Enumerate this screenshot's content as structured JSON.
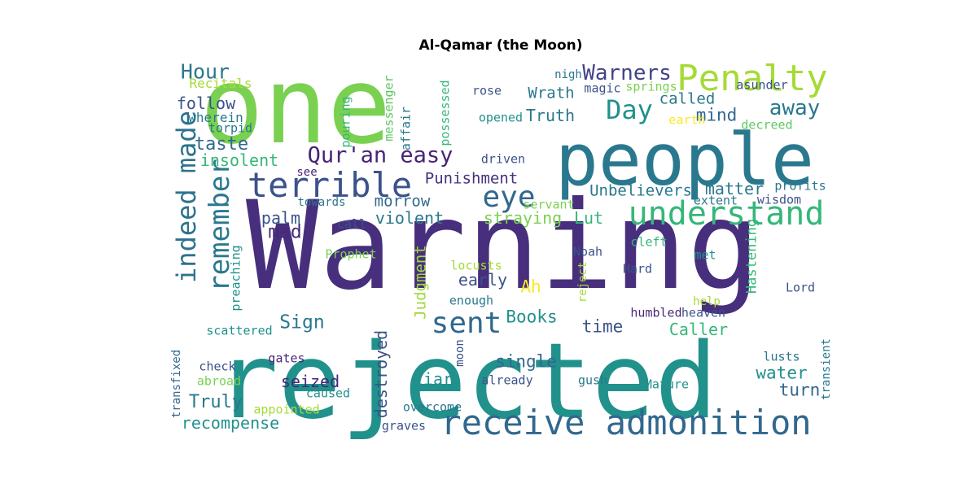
{
  "title": "Al-Qamar (the Moon)",
  "words": [
    {
      "text": "Warning",
      "color": "#472f7d",
      "size": "big"
    },
    {
      "text": "rejected",
      "color": "#21918c"
    },
    {
      "text": "one",
      "color": "#7ad151"
    },
    {
      "text": "people",
      "color": "#2a788e"
    },
    {
      "text": "receive admonition",
      "color": "#31688e"
    },
    {
      "text": "understand",
      "color": "#35b779"
    },
    {
      "text": "Penalty",
      "color": "#a5db36"
    },
    {
      "text": "terrible",
      "color": "#3b528b"
    },
    {
      "text": "indeed made",
      "color": "#2c728e",
      "orientation": "vertical"
    },
    {
      "text": "eye",
      "color": "#31688e"
    },
    {
      "text": "remember",
      "color": "#2a788e",
      "orientation": "vertical"
    },
    {
      "text": "Qur'an easy",
      "color": "#482475"
    },
    {
      "text": "sent",
      "color": "#31688e"
    },
    {
      "text": "Day",
      "color": "#21918c"
    },
    {
      "text": "Warners",
      "color": "#414487"
    },
    {
      "text": "away",
      "color": "#2a788e"
    },
    {
      "text": "Hour",
      "color": "#2a788e"
    },
    {
      "text": "taste",
      "color": "#31688e"
    },
    {
      "text": "follow",
      "color": "#3b528b"
    },
    {
      "text": "mind",
      "color": "#31688e"
    },
    {
      "text": "called",
      "color": "#2a788e"
    },
    {
      "text": "Truth",
      "color": "#2a788e"
    },
    {
      "text": "Wrath",
      "color": "#2a788e"
    },
    {
      "text": "insolent",
      "color": "#35b779"
    },
    {
      "text": "Punishment",
      "color": "#46327e"
    },
    {
      "text": "matter",
      "color": "#2a788e"
    },
    {
      "text": "Unbelievers",
      "color": "#2a788e"
    },
    {
      "text": "morrow",
      "color": "#31688e"
    },
    {
      "text": "violent",
      "color": "#2a788e"
    },
    {
      "text": "palm",
      "color": "#3b528b"
    },
    {
      "text": "mad",
      "color": "#482878"
    },
    {
      "text": "straying",
      "color": "#7ad151"
    },
    {
      "text": "Lut",
      "color": "#35b779"
    },
    {
      "text": "Judgment",
      "color": "#a0da39",
      "orientation": "vertical"
    },
    {
      "text": "Sign",
      "color": "#2a788e"
    },
    {
      "text": "early",
      "color": "#3b528b"
    },
    {
      "text": "Books",
      "color": "#21918c"
    },
    {
      "text": "time",
      "color": "#3b528b"
    },
    {
      "text": "Caller",
      "color": "#35b779"
    },
    {
      "text": "single",
      "color": "#31688e"
    },
    {
      "text": "water",
      "color": "#21918c"
    },
    {
      "text": "turn",
      "color": "#31688e"
    },
    {
      "text": "seized",
      "color": "#482878"
    },
    {
      "text": "liar",
      "color": "#21918c"
    },
    {
      "text": "Truly",
      "color": "#2a788e"
    },
    {
      "text": "recompense",
      "color": "#21918c"
    },
    {
      "text": "destroyed",
      "color": "#3b528b",
      "orientation": "vertical"
    },
    {
      "text": "Ah",
      "color": "#fde725"
    },
    {
      "text": "Recitals",
      "color": "#a5db36"
    },
    {
      "text": "wherein",
      "color": "#2a788e"
    },
    {
      "text": "torpid",
      "color": "#2a788e"
    },
    {
      "text": "pouring",
      "color": "#35b779",
      "orientation": "vertical"
    },
    {
      "text": "messenger",
      "color": "#5ec962",
      "orientation": "vertical"
    },
    {
      "text": "affair",
      "color": "#2a788e",
      "orientation": "vertical"
    },
    {
      "text": "possessed",
      "color": "#35b779",
      "orientation": "vertical"
    },
    {
      "text": "rose",
      "color": "#3b528b"
    },
    {
      "text": "nigh",
      "color": "#2a788e"
    },
    {
      "text": "magic",
      "color": "#3b528b"
    },
    {
      "text": "springs",
      "color": "#7ad151"
    },
    {
      "text": "asunder",
      "color": "#3b528b"
    },
    {
      "text": "opened",
      "color": "#21918c"
    },
    {
      "text": "earth",
      "color": "#fde725"
    },
    {
      "text": "decreed",
      "color": "#5ec962"
    },
    {
      "text": "driven",
      "color": "#3b528b"
    },
    {
      "text": "see",
      "color": "#482475"
    },
    {
      "text": "towards",
      "color": "#2a788e"
    },
    {
      "text": "servant",
      "color": "#7ad151"
    },
    {
      "text": "extent",
      "color": "#2a788e"
    },
    {
      "text": "profits",
      "color": "#2a788e"
    },
    {
      "text": "wisdom",
      "color": "#3b528b"
    },
    {
      "text": "call",
      "color": "#3b528b"
    },
    {
      "text": "cleft",
      "color": "#35b779"
    },
    {
      "text": "preaching",
      "color": "#21918c",
      "orientation": "vertical"
    },
    {
      "text": "Prophet",
      "color": "#7ad151"
    },
    {
      "text": "locusts",
      "color": "#a5db36"
    },
    {
      "text": "Noah",
      "color": "#3b528b"
    },
    {
      "text": "Hard",
      "color": "#3b528b"
    },
    {
      "text": "met",
      "color": "#21918c"
    },
    {
      "text": "Hastening",
      "color": "#35b779",
      "orientation": "vertical"
    },
    {
      "text": "Lord",
      "color": "#3b528b"
    },
    {
      "text": "reject",
      "color": "#a5db36",
      "orientation": "vertical"
    },
    {
      "text": "enough",
      "color": "#2a788e"
    },
    {
      "text": "help",
      "color": "#a5db36"
    },
    {
      "text": "humbled",
      "color": "#482878"
    },
    {
      "text": "heaven",
      "color": "#3b528b"
    },
    {
      "text": "scattered",
      "color": "#21918c"
    },
    {
      "text": "transfixed",
      "color": "#31688e",
      "orientation": "vertical"
    },
    {
      "text": "check",
      "color": "#3b528b"
    },
    {
      "text": "gates",
      "color": "#482878"
    },
    {
      "text": "moon",
      "color": "#3b528b",
      "orientation": "vertical"
    },
    {
      "text": "lusts",
      "color": "#2a788e"
    },
    {
      "text": "transient",
      "color": "#2a788e",
      "orientation": "vertical"
    },
    {
      "text": "abroad",
      "color": "#7ad151"
    },
    {
      "text": "caused",
      "color": "#21918c"
    },
    {
      "text": "already",
      "color": "#3b528b"
    },
    {
      "text": "gush",
      "color": "#2a788e"
    },
    {
      "text": "Mature",
      "color": "#21918c"
    },
    {
      "text": "appointed",
      "color": "#a5db36"
    },
    {
      "text": "overcome",
      "color": "#2a788e"
    },
    {
      "text": "graves",
      "color": "#3b528b"
    }
  ]
}
